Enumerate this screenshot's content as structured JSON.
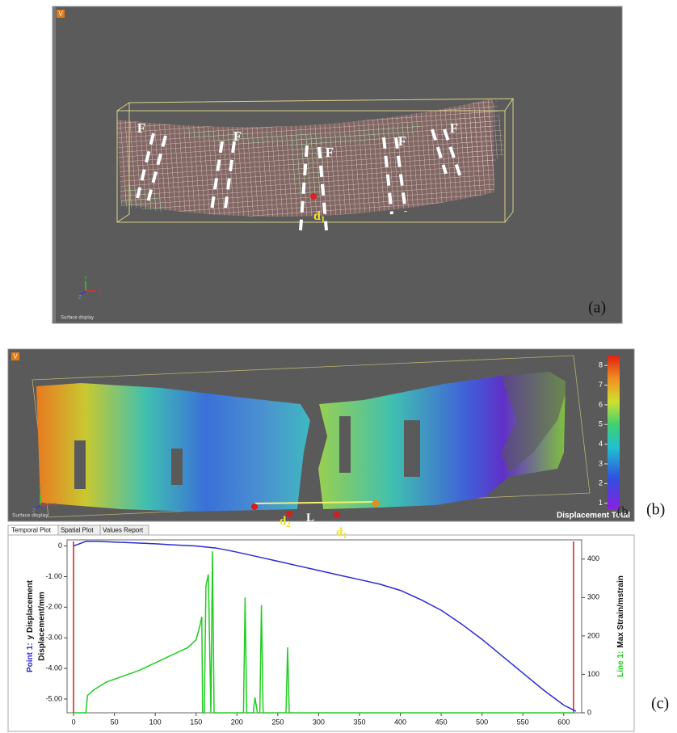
{
  "panel_a": {
    "corner_icon": "V",
    "footer": "Surface display",
    "axis_triad": [
      "Y",
      "X",
      "Z"
    ],
    "force_labels": [
      "F",
      "F",
      "F",
      "F",
      "F"
    ],
    "point_label": {
      "main": "d",
      "sub": "1"
    },
    "caption": "(a)"
  },
  "panel_b": {
    "corner_icon": "V",
    "footer": "Surface display",
    "axis_triad": [
      "Y",
      "X",
      "Z"
    ],
    "labels": [
      {
        "main": "d",
        "sub": "2"
      },
      {
        "main": "L"
      },
      {
        "main": "d",
        "sub": "1"
      }
    ],
    "colorbar": {
      "lim": [
        0.7,
        8.5
      ],
      "ticks": [
        1,
        2,
        3,
        4,
        5,
        6,
        7,
        8
      ],
      "title": "Displacement Total",
      "unit": "Displacement/mm"
    },
    "caption": "(b"
  },
  "outer_caption_b": "(b)",
  "tabs": [
    "Temporal Plot",
    "Spatial Plot",
    "Values Report"
  ],
  "chart_data": {
    "type": "line",
    "caption": "(c)",
    "ylabel": {
      "line1": "y Displacement",
      "line2": "Displacement/mm"
    },
    "y2label": "Max  Strain/mstrain",
    "xlim": [
      -8,
      622
    ],
    "ylim": [
      -5.45,
      0.2
    ],
    "y2lim": [
      0,
      450
    ],
    "xticks": [
      0,
      50,
      100,
      150,
      200,
      250,
      300,
      350,
      400,
      450,
      500,
      550,
      600
    ],
    "yticks": [
      0,
      {
        "value": -1,
        "label": "-1.00"
      },
      {
        "value": -2,
        "label": "-2.00"
      },
      {
        "value": -3,
        "label": "-3.00"
      },
      {
        "value": -4,
        "label": "-4.00"
      },
      {
        "value": -5,
        "label": "-5.00"
      }
    ],
    "y2ticks": [
      0,
      100,
      200,
      300,
      400
    ],
    "markers": {
      "color": "#cc2020",
      "x": [
        0,
        612
      ]
    },
    "series": [
      {
        "name": "Point 1:",
        "color": "#2a2ad8",
        "x": [
          0,
          5,
          15,
          30,
          50,
          75,
          100,
          125,
          150,
          175,
          200,
          225,
          250,
          275,
          300,
          325,
          350,
          375,
          400,
          425,
          450,
          475,
          500,
          525,
          550,
          575,
          600,
          615
        ],
        "values": [
          0,
          0.05,
          0.15,
          0.15,
          0.13,
          0.1,
          0.07,
          0.03,
          0,
          -0.07,
          -0.2,
          -0.35,
          -0.5,
          -0.65,
          -0.8,
          -0.95,
          -1.1,
          -1.25,
          -1.45,
          -1.75,
          -2.1,
          -2.55,
          -3.05,
          -3.6,
          -4.15,
          -4.7,
          -5.2,
          -5.4
        ]
      },
      {
        "name": "Line 1:",
        "color": "#22cc22",
        "axis": "y2",
        "x": [
          0,
          15,
          17,
          25,
          40,
          60,
          80,
          100,
          120,
          140,
          150,
          155,
          157,
          158,
          160,
          162,
          165,
          168,
          170,
          172,
          175,
          208,
          210,
          212,
          220,
          222,
          225,
          228,
          230,
          232,
          260,
          262,
          264,
          400,
          612
        ],
        "values": [
          0,
          0,
          45,
          60,
          80,
          95,
          110,
          130,
          150,
          170,
          190,
          230,
          250,
          0,
          0,
          330,
          360,
          0,
          420,
          0,
          0,
          0,
          300,
          0,
          0,
          40,
          0,
          0,
          280,
          0,
          0,
          170,
          0,
          0,
          0
        ]
      }
    ]
  }
}
